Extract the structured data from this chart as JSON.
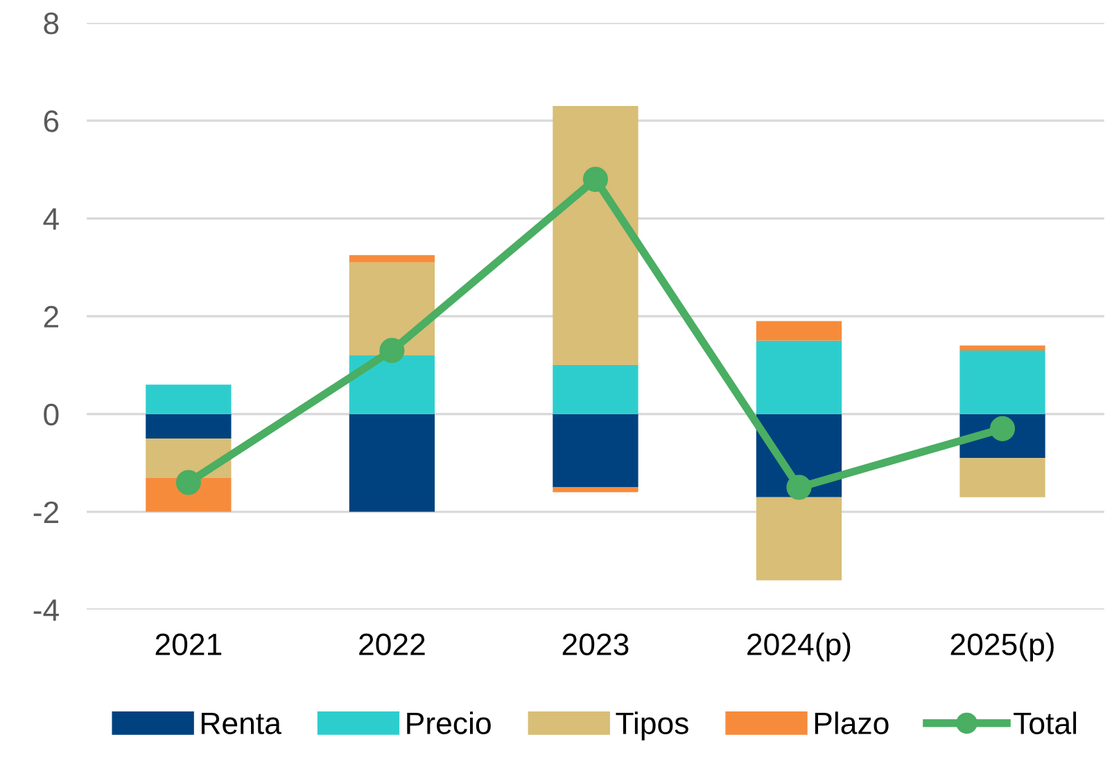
{
  "chart_data": {
    "type": "bar",
    "stacked": true,
    "categories": [
      "2021",
      "2022",
      "2023",
      "2024(p)",
      "2025(p)"
    ],
    "series": [
      {
        "name": "Renta",
        "color": "#00427f",
        "values": [
          -0.5,
          -2.0,
          -1.5,
          -1.7,
          -0.9
        ]
      },
      {
        "name": "Precio",
        "color": "#2ecdcd",
        "values": [
          0.6,
          1.2,
          1.0,
          1.5,
          1.3
        ]
      },
      {
        "name": "Tipos",
        "color": "#d8be76",
        "values": [
          -0.8,
          1.9,
          5.3,
          -1.7,
          -0.8
        ]
      },
      {
        "name": "Plazo",
        "color": "#f78b3c",
        "values": [
          -0.7,
          0.15,
          -0.1,
          0.4,
          0.1
        ]
      },
      {
        "name": "Total",
        "type": "line",
        "color": "#4aae63",
        "values": [
          -1.4,
          1.3,
          4.8,
          -1.5,
          -0.3
        ]
      }
    ],
    "ylim": [
      -4,
      8
    ],
    "yticks": [
      -4,
      -2,
      0,
      2,
      4,
      6,
      8
    ],
    "grid": "y",
    "legend": "bottom",
    "marker": "circle"
  }
}
